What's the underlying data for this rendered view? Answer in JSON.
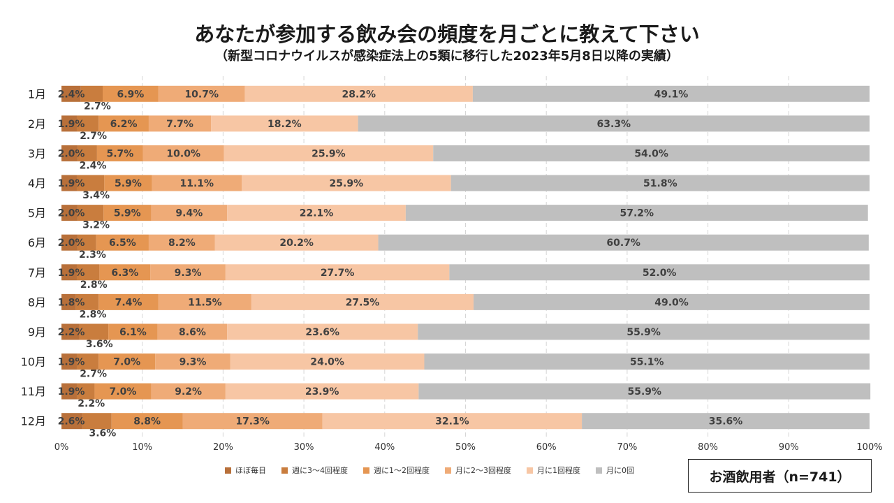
{
  "title": "あなたが参加する飲み会の頻度を月ごとに教えて下さい",
  "subtitle": "（新型コロナウイルスが感染症法上の5類に移行した2023年5月8日以降の実績）",
  "note": "お酒飲用者（n=741）",
  "chart_data": {
    "type": "bar",
    "orientation": "horizontal",
    "stacked": true,
    "percent_stacked": true,
    "title": "あなたが参加する飲み会の頻度を月ごとに教えて下さい",
    "subtitle": "（新型コロナウイルスが感染症法上の5類に移行した2023年5月8日以降の実績）",
    "categories": [
      "1月",
      "2月",
      "3月",
      "4月",
      "5月",
      "6月",
      "7月",
      "8月",
      "9月",
      "10月",
      "11月",
      "12月"
    ],
    "x_ticks": [
      "0%",
      "10%",
      "20%",
      "30%",
      "40%",
      "50%",
      "60%",
      "70%",
      "80%",
      "90%",
      "100%"
    ],
    "xlim": [
      0,
      100
    ],
    "grid": true,
    "legend_position": "bottom",
    "series": [
      {
        "name": "ほぼ毎日",
        "color": "#b8703a",
        "values": [
          2.4,
          1.9,
          2.0,
          1.9,
          2.0,
          2.0,
          1.9,
          1.8,
          2.2,
          1.9,
          1.9,
          2.6
        ]
      },
      {
        "name": "週に3〜4回程度",
        "color": "#c97d3e",
        "values": [
          2.7,
          2.7,
          2.4,
          3.4,
          3.2,
          2.3,
          2.8,
          2.8,
          3.6,
          2.7,
          2.2,
          3.6
        ]
      },
      {
        "name": "週に1〜2回程度",
        "color": "#e59652",
        "values": [
          6.9,
          6.2,
          5.7,
          5.9,
          5.9,
          6.5,
          6.3,
          7.4,
          6.1,
          7.0,
          7.0,
          8.8
        ]
      },
      {
        "name": "月に2〜3回程度",
        "color": "#efab77",
        "values": [
          10.7,
          7.7,
          10.0,
          11.1,
          9.4,
          8.2,
          9.3,
          11.5,
          8.6,
          9.3,
          9.2,
          17.3
        ]
      },
      {
        "name": "月に1回程度",
        "color": "#f7c6a4",
        "values": [
          28.2,
          18.2,
          25.9,
          25.9,
          22.1,
          20.2,
          27.7,
          27.5,
          23.6,
          24.0,
          23.9,
          32.1
        ]
      },
      {
        "name": "月に0回",
        "color": "#bfbfbf",
        "values": [
          49.1,
          63.3,
          54.0,
          51.8,
          57.2,
          60.7,
          52.0,
          49.0,
          55.9,
          55.1,
          55.9,
          35.6
        ]
      }
    ]
  }
}
